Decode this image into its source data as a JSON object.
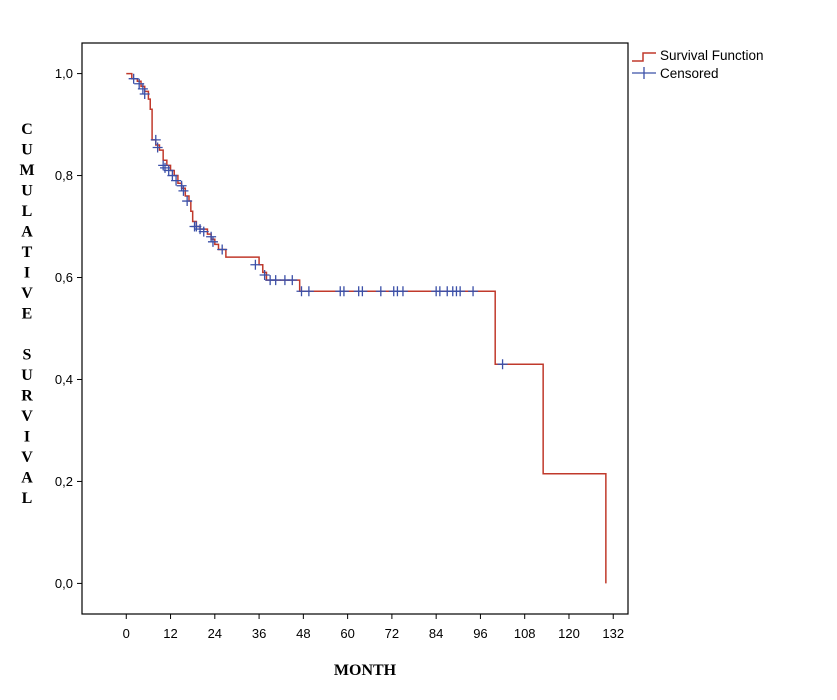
{
  "chart_data": {
    "type": "line",
    "title": "",
    "xlabel": "MONTH",
    "ylabel": "CUMULATIVE SURVIVAL",
    "xlim": [
      -12,
      136
    ],
    "ylim": [
      -0.06,
      1.06
    ],
    "xticks": [
      0,
      12,
      24,
      36,
      48,
      60,
      72,
      84,
      96,
      108,
      120,
      132
    ],
    "xtick_labels": [
      "0",
      "12",
      "24",
      "36",
      "48",
      "60",
      "72",
      "84",
      "96",
      "108",
      "120",
      "132"
    ],
    "yticks": [
      0.0,
      0.2,
      0.4,
      0.6,
      0.8,
      1.0
    ],
    "ytick_labels": [
      "0,0",
      "0,2",
      "0,4",
      "0,6",
      "0,8",
      "1,0"
    ],
    "grid": false,
    "legend_position": "outside-top-right",
    "series": [
      {
        "name": "Survival Function",
        "kind": "step",
        "color": "#c0392b",
        "points": [
          [
            0,
            1.0
          ],
          [
            1.5,
            0.99
          ],
          [
            3,
            0.985
          ],
          [
            4,
            0.975
          ],
          [
            5,
            0.965
          ],
          [
            6,
            0.95
          ],
          [
            6.5,
            0.93
          ],
          [
            7,
            0.87
          ],
          [
            8,
            0.86
          ],
          [
            9,
            0.85
          ],
          [
            10,
            0.83
          ],
          [
            11,
            0.82
          ],
          [
            12,
            0.81
          ],
          [
            13,
            0.8
          ],
          [
            14,
            0.785
          ],
          [
            15,
            0.775
          ],
          [
            16,
            0.76
          ],
          [
            17,
            0.75
          ],
          [
            17.5,
            0.73
          ],
          [
            18,
            0.71
          ],
          [
            19,
            0.7
          ],
          [
            20,
            0.695
          ],
          [
            22,
            0.685
          ],
          [
            23,
            0.675
          ],
          [
            24,
            0.665
          ],
          [
            25,
            0.655
          ],
          [
            27,
            0.64
          ],
          [
            36,
            0.625
          ],
          [
            37,
            0.61
          ],
          [
            38,
            0.595
          ],
          [
            47,
            0.573
          ],
          [
            100,
            0.43
          ],
          [
            113,
            0.215
          ],
          [
            130,
            0.0
          ]
        ]
      },
      {
        "name": "Censored",
        "kind": "censor-marks",
        "color": "#3b50a8",
        "points": [
          [
            2,
            0.99
          ],
          [
            3.5,
            0.98
          ],
          [
            4.5,
            0.97
          ],
          [
            5,
            0.96
          ],
          [
            8,
            0.87
          ],
          [
            8.5,
            0.855
          ],
          [
            10,
            0.82
          ],
          [
            10.5,
            0.815
          ],
          [
            11.5,
            0.81
          ],
          [
            12.5,
            0.8
          ],
          [
            13.5,
            0.79
          ],
          [
            15,
            0.78
          ],
          [
            15.5,
            0.77
          ],
          [
            16.5,
            0.75
          ],
          [
            18.5,
            0.7
          ],
          [
            19,
            0.7
          ],
          [
            20,
            0.695
          ],
          [
            21,
            0.69
          ],
          [
            23,
            0.68
          ],
          [
            23.5,
            0.67
          ],
          [
            26,
            0.655
          ],
          [
            35,
            0.625
          ],
          [
            37.5,
            0.605
          ],
          [
            39,
            0.595
          ],
          [
            40.5,
            0.595
          ],
          [
            43,
            0.595
          ],
          [
            45,
            0.595
          ],
          [
            47.5,
            0.573
          ],
          [
            49.5,
            0.573
          ],
          [
            58,
            0.573
          ],
          [
            59,
            0.573
          ],
          [
            63,
            0.573
          ],
          [
            64,
            0.573
          ],
          [
            69,
            0.573
          ],
          [
            72.5,
            0.573
          ],
          [
            73.5,
            0.573
          ],
          [
            75,
            0.573
          ],
          [
            84,
            0.573
          ],
          [
            85,
            0.573
          ],
          [
            87,
            0.573
          ],
          [
            88.5,
            0.573
          ],
          [
            89.5,
            0.573
          ],
          [
            90.5,
            0.573
          ],
          [
            94,
            0.573
          ],
          [
            102,
            0.43
          ]
        ]
      }
    ]
  }
}
